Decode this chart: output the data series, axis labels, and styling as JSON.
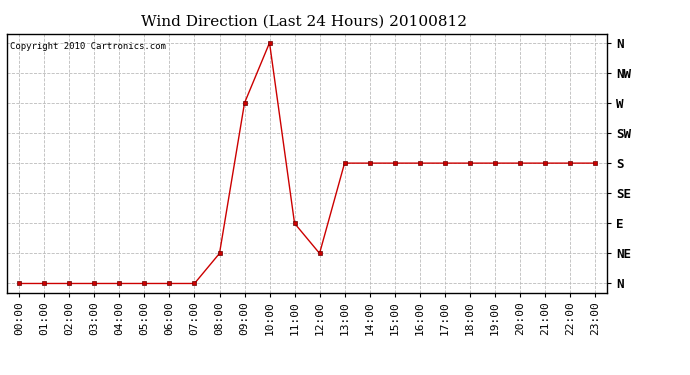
{
  "title": "Wind Direction (Last 24 Hours) 20100812",
  "copyright_text": "Copyright 2010 Cartronics.com",
  "x_labels": [
    "00:00",
    "01:00",
    "02:00",
    "03:00",
    "04:00",
    "05:00",
    "06:00",
    "07:00",
    "08:00",
    "09:00",
    "10:00",
    "11:00",
    "12:00",
    "13:00",
    "14:00",
    "15:00",
    "16:00",
    "17:00",
    "18:00",
    "19:00",
    "20:00",
    "21:00",
    "22:00",
    "23:00"
  ],
  "y_labels": [
    "N",
    "NE",
    "E",
    "SE",
    "S",
    "SW",
    "W",
    "NW",
    "N"
  ],
  "y_values": [
    0,
    1,
    2,
    3,
    4,
    5,
    6,
    7,
    8
  ],
  "data_values": [
    0,
    0,
    0,
    0,
    0,
    0,
    0,
    0,
    1,
    6,
    8,
    2,
    1,
    4,
    4,
    4,
    4,
    4,
    4,
    4,
    4,
    4,
    4,
    4
  ],
  "line_color": "#cc0000",
  "marker": "s",
  "marker_size": 2.5,
  "background_color": "#ffffff",
  "plot_bg_color": "#ffffff",
  "grid_color": "#bbbbbb",
  "title_fontsize": 11,
  "label_fontsize": 8,
  "copyright_fontsize": 6.5
}
